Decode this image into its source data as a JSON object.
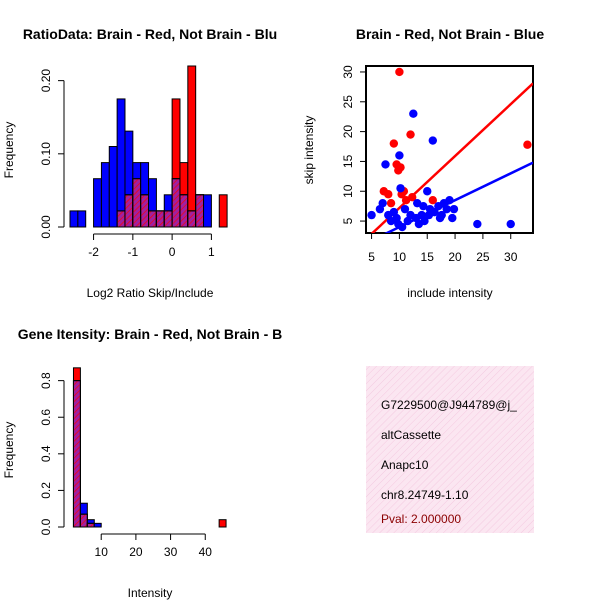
{
  "colors": {
    "red": "#ff0000",
    "blue": "#0000ff",
    "overlap": "#a020a0",
    "panel_bg": "#fce4f0",
    "pval": "#8b0000"
  },
  "chart_data": [
    {
      "type": "bar",
      "title": "RatioData: Brain - Red, Not Brain - Blu",
      "xlabel": "Log2 Ratio Skip/Include",
      "ylabel": "Frequency",
      "xlim": [
        -2.6,
        1.55
      ],
      "ylim": [
        0,
        0.22
      ],
      "xticks": [
        "-2",
        "-1",
        "0",
        "1"
      ],
      "xtick_values": [
        -2,
        -1,
        0,
        1
      ],
      "yticks": [
        "0.00",
        "0.10",
        "0.20"
      ],
      "ytick_values": [
        0,
        0.1,
        0.2
      ],
      "bin_width": 0.2,
      "blue_bins": [
        {
          "x0": -2.6,
          "v": 0.022
        },
        {
          "x0": -2.4,
          "v": 0.022
        },
        {
          "x0": -2.2,
          "v": 0
        },
        {
          "x0": -2.0,
          "v": 0.066
        },
        {
          "x0": -1.8,
          "v": 0.088
        },
        {
          "x0": -1.6,
          "v": 0.11
        },
        {
          "x0": -1.4,
          "v": 0.175
        },
        {
          "x0": -1.2,
          "v": 0.131
        },
        {
          "x0": -1.0,
          "v": 0.088
        },
        {
          "x0": -0.8,
          "v": 0.088
        },
        {
          "x0": -0.6,
          "v": 0.066
        },
        {
          "x0": -0.4,
          "v": 0.022
        },
        {
          "x0": -0.2,
          "v": 0.044
        },
        {
          "x0": 0.0,
          "v": 0.066
        },
        {
          "x0": 0.2,
          "v": 0.044
        },
        {
          "x0": 0.4,
          "v": 0.022
        },
        {
          "x0": 0.6,
          "v": 0.044
        },
        {
          "x0": 0.8,
          "v": 0.044
        }
      ],
      "red_bins": [
        {
          "x0": -1.4,
          "v": 0.022
        },
        {
          "x0": -1.2,
          "v": 0.044
        },
        {
          "x0": -1.0,
          "v": 0.066
        },
        {
          "x0": -0.8,
          "v": 0.044
        },
        {
          "x0": -0.6,
          "v": 0.022
        },
        {
          "x0": -0.4,
          "v": 0.022
        },
        {
          "x0": -0.2,
          "v": 0.022
        },
        {
          "x0": 0.0,
          "v": 0.175
        },
        {
          "x0": 0.2,
          "v": 0.088
        },
        {
          "x0": 0.4,
          "v": 0.22
        },
        {
          "x0": 0.6,
          "v": 0.044
        },
        {
          "x0": 1.2,
          "v": 0.044
        }
      ]
    },
    {
      "type": "scatter",
      "title": "Brain - Red, Not Brain - Blue",
      "xlabel": "include intensity",
      "ylabel": "skip intensity",
      "xlim": [
        4,
        34
      ],
      "ylim": [
        3,
        31
      ],
      "xticks": [
        "5",
        "10",
        "15",
        "20",
        "25",
        "30"
      ],
      "xtick_values": [
        5,
        10,
        15,
        20,
        25,
        30
      ],
      "yticks": [
        "5",
        "10",
        "15",
        "20",
        "25",
        "30"
      ],
      "ytick_values": [
        5,
        10,
        15,
        20,
        25,
        30
      ],
      "red_points": [
        [
          10,
          30
        ],
        [
          7.2,
          10
        ],
        [
          8,
          9.5
        ],
        [
          8.5,
          8
        ],
        [
          9,
          18
        ],
        [
          9.5,
          14.5
        ],
        [
          9.8,
          13.5
        ],
        [
          10.2,
          14
        ],
        [
          10.4,
          9.5
        ],
        [
          10.8,
          10
        ],
        [
          11.2,
          8.5
        ],
        [
          12,
          19.5
        ],
        [
          12.3,
          9
        ],
        [
          16,
          8.5
        ],
        [
          33,
          17.8
        ]
      ],
      "blue_points": [
        [
          5,
          6
        ],
        [
          6.5,
          7
        ],
        [
          7,
          8
        ],
        [
          7.5,
          14.5
        ],
        [
          8,
          6
        ],
        [
          8.5,
          5
        ],
        [
          9,
          6.5
        ],
        [
          9.5,
          5.5
        ],
        [
          9.8,
          4.5
        ],
        [
          10,
          16
        ],
        [
          10.2,
          10.5
        ],
        [
          10.5,
          4
        ],
        [
          11,
          7
        ],
        [
          11.5,
          5
        ],
        [
          12,
          6
        ],
        [
          12.5,
          23
        ],
        [
          13,
          5.5
        ],
        [
          13.2,
          8
        ],
        [
          13.5,
          4.5
        ],
        [
          14,
          6
        ],
        [
          14.3,
          7.5
        ],
        [
          14.5,
          5
        ],
        [
          15,
          10
        ],
        [
          15.3,
          6
        ],
        [
          15.5,
          7
        ],
        [
          16,
          18.5
        ],
        [
          16.3,
          6.5
        ],
        [
          17,
          7.5
        ],
        [
          17.3,
          5.5
        ],
        [
          17.6,
          6
        ],
        [
          18,
          8
        ],
        [
          18.5,
          7
        ],
        [
          19,
          8.5
        ],
        [
          19.5,
          5.5
        ],
        [
          19.8,
          7
        ],
        [
          24,
          4.5
        ],
        [
          30,
          4.5
        ]
      ],
      "red_line": {
        "intercept": -1.5,
        "slope": 0.87
      },
      "blue_line": {
        "intercept": -0.5,
        "slope": 0.45
      }
    },
    {
      "type": "bar",
      "title": "Gene Itensity: Brain - Red, Not Brain - B",
      "xlabel": "Intensity",
      "ylabel": "Frequency",
      "xlim": [
        1,
        48
      ],
      "ylim": [
        0,
        0.88
      ],
      "xticks": [
        "10",
        "20",
        "30",
        "40"
      ],
      "xtick_values": [
        10,
        20,
        30,
        40
      ],
      "yticks": [
        "0.0",
        "0.2",
        "0.4",
        "0.6",
        "0.8"
      ],
      "ytick_values": [
        0,
        0.2,
        0.4,
        0.6,
        0.8
      ],
      "bin_width": 2,
      "blue_bins": [
        {
          "x0": 2,
          "v": 0.8
        },
        {
          "x0": 4,
          "v": 0.13
        },
        {
          "x0": 6,
          "v": 0.04
        },
        {
          "x0": 8,
          "v": 0.02
        }
      ],
      "red_bins": [
        {
          "x0": 2,
          "v": 0.87
        },
        {
          "x0": 4,
          "v": 0.07
        },
        {
          "x0": 6,
          "v": 0.02
        },
        {
          "x0": 44,
          "v": 0.04
        }
      ]
    }
  ],
  "info_panel": {
    "id_line": "G7229500@J944789@j_",
    "event_type": "altCassette",
    "gene": "Anapc10",
    "location": "chr8.24749-1.10",
    "pval": "Pval: 2.000000"
  }
}
